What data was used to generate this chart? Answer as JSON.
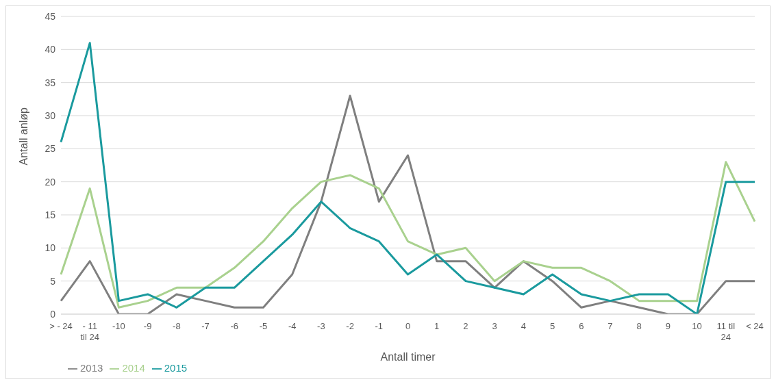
{
  "chart_data": {
    "type": "line",
    "xlabel": "Antall timer",
    "ylabel": "Antall anløp",
    "categories": [
      "> - 24",
      "- 11 til 24",
      "-10",
      "-9",
      "-8",
      "-7",
      "-6",
      "-5",
      "-4",
      "-3",
      "-2",
      "-1",
      "0",
      "1",
      "2",
      "3",
      "4",
      "5",
      "6",
      "7",
      "8",
      "9",
      "10",
      "11 til 24",
      "< 24"
    ],
    "series": [
      {
        "name": "2013",
        "color": "#7f7f7f",
        "values": [
          2,
          8,
          0,
          0,
          3,
          2,
          1,
          1,
          6,
          17,
          33,
          17,
          24,
          8,
          8,
          4,
          8,
          5,
          1,
          2,
          1,
          0,
          0,
          5,
          5
        ]
      },
      {
        "name": "2014",
        "color": "#a9d18e",
        "values": [
          6,
          19,
          1,
          2,
          4,
          4,
          7,
          11,
          16,
          20,
          21,
          19,
          11,
          9,
          10,
          5,
          8,
          7,
          7,
          5,
          2,
          2,
          2,
          23,
          14
        ]
      },
      {
        "name": "2015",
        "color": "#1a9a9e",
        "values": [
          26,
          41,
          2,
          3,
          1,
          4,
          4,
          8,
          12,
          17,
          13,
          11,
          6,
          9,
          5,
          4,
          3,
          6,
          3,
          2,
          3,
          3,
          0,
          20,
          20
        ]
      }
    ],
    "ylim": [
      0,
      45
    ],
    "yticks": [
      0,
      5,
      10,
      15,
      20,
      25,
      30,
      35,
      40,
      45
    ],
    "grid": "y",
    "legend": "bottom left",
    "marker": "none",
    "line_style": "solid"
  }
}
